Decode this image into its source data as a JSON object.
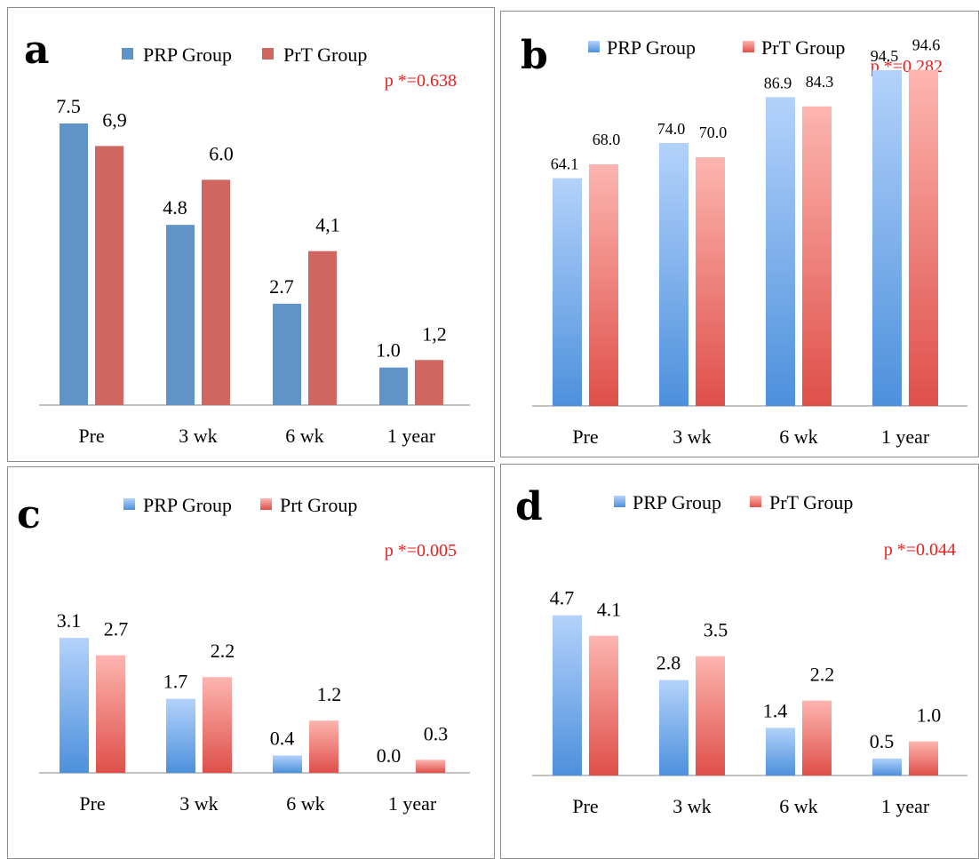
{
  "colors": {
    "solid_blue": "#6094c6",
    "solid_red": "#cf6660",
    "grad_blue_top": "#b3d2fb",
    "grad_blue_bottom": "#4d90dc",
    "grad_red_top": "#fdb5b0",
    "grad_red_bottom": "#df4f49",
    "pvalue": "#e8201f"
  },
  "chart_data": [
    {
      "panel": "a",
      "type": "bar",
      "style": "solid",
      "categories": [
        "Pre",
        "3 wk",
        "6 wk",
        "1 year"
      ],
      "series": [
        {
          "name": "PRP Group",
          "values": [
            7.5,
            4.8,
            2.7,
            1.0
          ],
          "labels": [
            "7.5",
            "4.8",
            "2.7",
            "1.0"
          ]
        },
        {
          "name": "PrT Group",
          "values": [
            6.9,
            6.0,
            4.1,
            1.2
          ],
          "labels": [
            "6,9",
            "6.0",
            "4,1",
            "1,2"
          ]
        }
      ],
      "annotation": "p *=0.638",
      "ylim": [
        0,
        7.5
      ],
      "grid": false,
      "legend_position": "top"
    },
    {
      "panel": "b",
      "type": "bar",
      "style": "gradient",
      "categories": [
        "Pre",
        "3 wk",
        "6 wk",
        "1 year"
      ],
      "series": [
        {
          "name": "PRP Group",
          "values": [
            64.1,
            74.0,
            86.9,
            94.5
          ],
          "labels": [
            "64.1",
            "74.0",
            "86.9",
            "94.5"
          ]
        },
        {
          "name": "PrT Group",
          "values": [
            68.0,
            70.0,
            84.3,
            94.6
          ],
          "labels": [
            "68.0",
            "70.0",
            "84.3",
            "94.6"
          ]
        }
      ],
      "annotation": "p *=0.282",
      "ylim": [
        0,
        100
      ],
      "grid": false,
      "legend_position": "top"
    },
    {
      "panel": "c",
      "type": "bar",
      "style": "gradient",
      "categories": [
        "Pre",
        "3 wk",
        "6 wk",
        "1 year"
      ],
      "series": [
        {
          "name": "PRP Group",
          "values": [
            3.1,
            1.7,
            0.4,
            0.0
          ],
          "labels": [
            "3.1",
            "1.7",
            "0.4",
            "0.0"
          ]
        },
        {
          "name": "Prt Group",
          "values": [
            2.7,
            2.2,
            1.2,
            0.3
          ],
          "labels": [
            "2.7",
            "2.2",
            "1.2",
            "0.3"
          ]
        }
      ],
      "annotation": "p *=0.005",
      "ylim": [
        0,
        6.0
      ],
      "grid": false,
      "legend_position": "top"
    },
    {
      "panel": "d",
      "type": "bar",
      "style": "gradient",
      "categories": [
        "Pre",
        "3 wk",
        "6 wk",
        "1 year"
      ],
      "series": [
        {
          "name": "PRP Group",
          "values": [
            4.7,
            2.8,
            1.4,
            0.5
          ],
          "labels": [
            "4.7",
            "2.8",
            "1.4",
            "0.5"
          ]
        },
        {
          "name": "PrT Group",
          "values": [
            4.1,
            3.5,
            2.2,
            1.0
          ],
          "labels": [
            "4.1",
            "3.5",
            "2.2",
            "1.0"
          ]
        }
      ],
      "annotation": "p *=0.044",
      "ylim": [
        0,
        8.0
      ],
      "grid": false,
      "legend_position": "top"
    }
  ]
}
